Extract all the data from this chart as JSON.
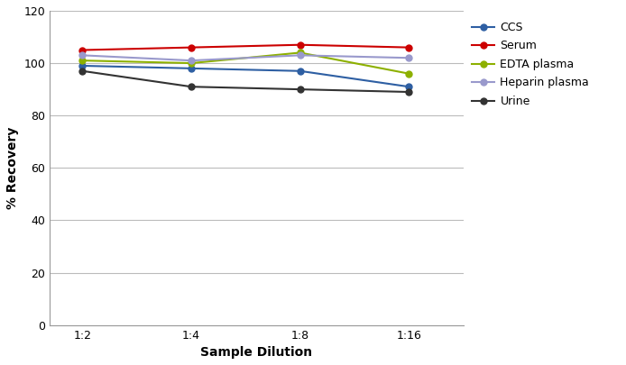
{
  "xlabel": "Sample Dilution",
  "ylabel": "% Recovery",
  "x_labels": [
    "1:2",
    "1:4",
    "1:8",
    "1:16"
  ],
  "x_positions": [
    0,
    1,
    2,
    3
  ],
  "series": [
    {
      "name": "CCS",
      "color": "#2E5FA3",
      "values": [
        99,
        98,
        97,
        91
      ]
    },
    {
      "name": "Serum",
      "color": "#CC0000",
      "values": [
        105,
        106,
        107,
        106
      ]
    },
    {
      "name": "EDTA plasma",
      "color": "#8DB000",
      "values": [
        101,
        100,
        104,
        96
      ]
    },
    {
      "name": "Heparin plasma",
      "color": "#9999CC",
      "values": [
        103,
        101,
        103,
        102
      ]
    },
    {
      "name": "Urine",
      "color": "#333333",
      "values": [
        97,
        91,
        90,
        89
      ]
    }
  ],
  "ylim": [
    0,
    120
  ],
  "yticks": [
    0,
    20,
    40,
    60,
    80,
    100,
    120
  ],
  "grid_color": "#BBBBBB",
  "background_color": "#FFFFFF",
  "marker": "o",
  "marker_size": 5,
  "line_width": 1.5,
  "figsize": [
    6.94,
    4.05
  ],
  "dpi": 100,
  "tick_fontsize": 9,
  "label_fontsize": 10,
  "legend_fontsize": 9
}
